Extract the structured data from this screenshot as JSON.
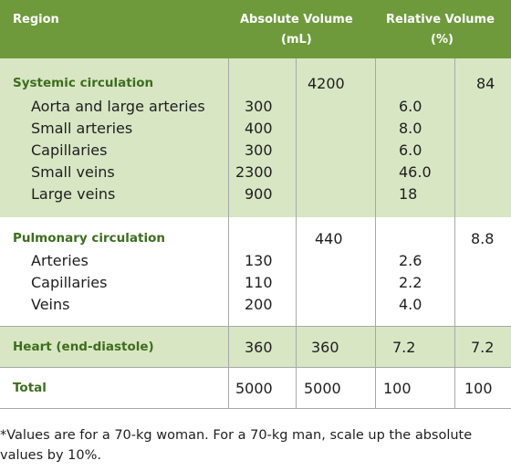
{
  "header": {
    "region": "Region",
    "absolute_line1": "Absolute Volume",
    "absolute_line2": "(mL)",
    "relative_line1": "Relative Volume",
    "relative_line2": "(%)"
  },
  "systemic": {
    "title": "Systemic circulation",
    "absolute_total": "4200",
    "relative_total": "84",
    "rows": [
      {
        "label": "Aorta and large arteries",
        "abs": "300",
        "rel": "6.0"
      },
      {
        "label": "Small arteries",
        "abs": "400",
        "rel": "8.0"
      },
      {
        "label": "Capillaries",
        "abs": "300",
        "rel": "6.0"
      },
      {
        "label": "Small veins",
        "abs": "2300",
        "rel": "46.0"
      },
      {
        "label": "Large veins",
        "abs": "900",
        "rel": "18"
      }
    ]
  },
  "pulmonary": {
    "title": "Pulmonary circulation",
    "absolute_total": "440",
    "relative_total": "8.8",
    "rows": [
      {
        "label": "Arteries",
        "abs": "130",
        "rel": "2.6"
      },
      {
        "label": "Capillaries",
        "abs": "110",
        "rel": "2.2"
      },
      {
        "label": "Veins",
        "abs": "200",
        "rel": "4.0"
      }
    ]
  },
  "heart": {
    "title": "Heart (end-diastole)",
    "abs": "360",
    "abs_total": "360",
    "rel": "7.2",
    "rel_total": "7.2"
  },
  "total": {
    "title": "Total",
    "abs": "5000",
    "abs_total": "5000",
    "rel": "100",
    "rel_total": "100"
  },
  "footnote": "*Values are for a 70-kg woman. For a 70-kg man, scale up the absolute values by 10%."
}
